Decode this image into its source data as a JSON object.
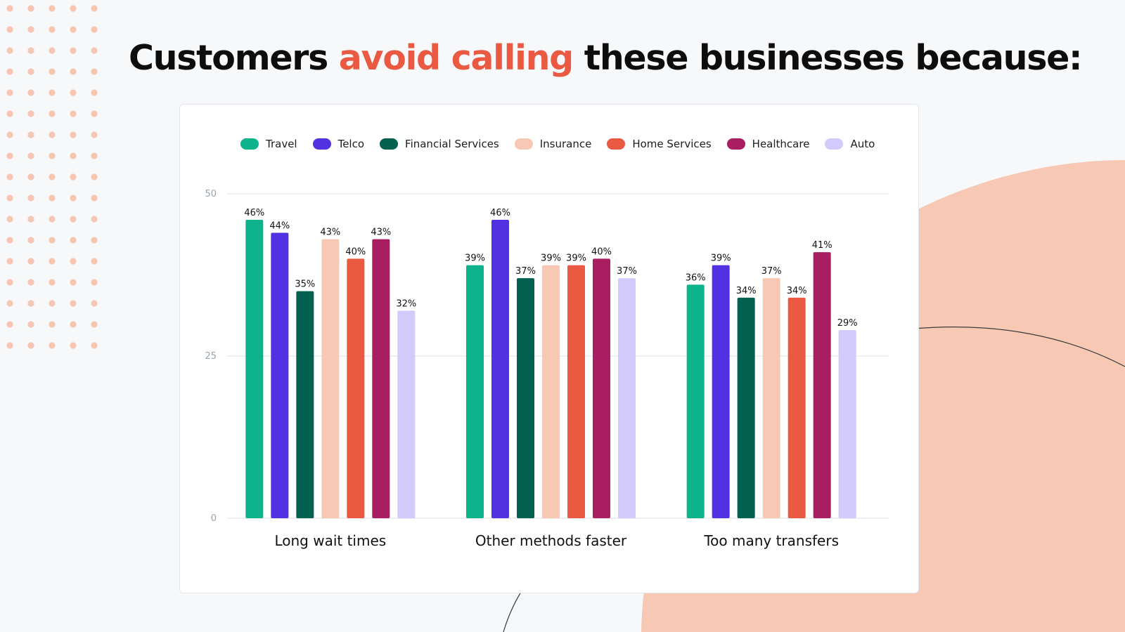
{
  "title": {
    "before": "Customers ",
    "highlight": "avoid calling",
    "after": " these businesses because:"
  },
  "colors": {
    "accent": "#ea5a43",
    "background_blob": "#f7c9b4",
    "dots": "#f7c6b2"
  },
  "chart_data": {
    "type": "bar",
    "categories": [
      "Long wait times",
      "Other methods faster",
      "Too many transfers"
    ],
    "series": [
      {
        "name": "Travel",
        "color": "#0db38a",
        "values": [
          46,
          39,
          36
        ]
      },
      {
        "name": "Telco",
        "color": "#5131e2",
        "values": [
          44,
          46,
          39
        ]
      },
      {
        "name": "Financial Services",
        "color": "#03624f",
        "values": [
          35,
          37,
          34
        ]
      },
      {
        "name": "Insurance",
        "color": "#f7c9b4",
        "values": [
          43,
          39,
          37
        ]
      },
      {
        "name": "Home Services",
        "color": "#ea5a43",
        "values": [
          40,
          39,
          34
        ]
      },
      {
        "name": "Healthcare",
        "color": "#a81e61",
        "values": [
          43,
          40,
          41
        ]
      },
      {
        "name": "Auto",
        "color": "#d2cbfb",
        "values": [
          32,
          37,
          29
        ]
      }
    ],
    "value_suffix": "%",
    "ylim": [
      0,
      50
    ],
    "yticks": [
      0,
      25,
      50
    ],
    "grid": true,
    "legend_position": "top"
  }
}
